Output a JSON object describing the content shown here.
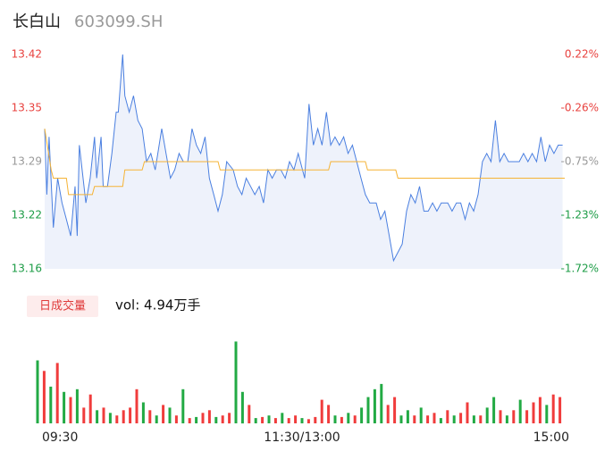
{
  "header": {
    "title": "长白山",
    "code": "603099.SH"
  },
  "chart_data": [
    {
      "type": "line",
      "xlim": [
        0,
        240
      ],
      "ylim": [
        13.16,
        13.42
      ],
      "yticks": [
        13.42,
        {
          "value": 13.355,
          "label": "13.35"
        },
        13.29,
        {
          "value": 13.225,
          "label": "13.22"
        },
        13.16
      ],
      "ytick_colors": [
        "#e8413e",
        "#e8413e",
        "#999999",
        "#1c9c46",
        "#1c9c46"
      ],
      "y2lim": [
        -1.72,
        0.22
      ],
      "y2ticks": [
        {
          "value": 0.22,
          "label": "0.22%"
        },
        {
          "value": -0.265,
          "label": "-0.26%"
        },
        {
          "value": -0.75,
          "label": "-0.75%"
        },
        {
          "value": -1.235,
          "label": "-1.23%"
        },
        {
          "value": -1.72,
          "label": "-1.72%"
        }
      ],
      "area_fill": true,
      "series": [
        {
          "color": "#4a7fe0",
          "x": [
            0,
            1,
            2,
            4,
            6,
            8,
            10,
            12,
            14,
            15,
            16,
            19,
            21,
            23,
            24,
            26,
            27,
            29,
            31,
            33,
            34,
            36,
            37,
            39,
            41,
            43,
            45,
            47,
            49,
            51,
            54,
            56,
            58,
            60,
            62,
            64,
            66,
            68,
            70,
            72,
            74,
            76,
            78,
            80,
            82,
            84,
            87,
            89,
            91,
            93,
            95,
            97,
            99,
            101,
            103,
            105,
            107,
            109,
            111,
            113,
            115,
            117,
            120,
            122,
            124,
            126,
            128,
            130,
            132,
            134,
            136,
            138,
            140,
            142,
            144,
            146,
            148,
            150,
            153,
            155,
            157,
            159,
            161,
            163,
            165,
            167,
            169,
            171,
            173,
            175,
            177,
            179,
            181,
            183,
            186,
            188,
            190,
            192,
            194,
            196,
            198,
            200,
            202,
            204,
            206,
            208,
            210,
            212,
            214,
            216,
            219,
            221,
            223,
            225,
            227,
            229,
            231,
            233,
            235,
            237,
            239
          ],
          "values": [
            13.33,
            13.25,
            13.32,
            13.21,
            13.27,
            13.24,
            13.22,
            13.2,
            13.26,
            13.2,
            13.31,
            13.24,
            13.27,
            13.32,
            13.27,
            13.32,
            13.26,
            13.26,
            13.3,
            13.35,
            13.35,
            13.42,
            13.37,
            13.35,
            13.37,
            13.34,
            13.33,
            13.29,
            13.3,
            13.28,
            13.33,
            13.3,
            13.27,
            13.28,
            13.3,
            13.29,
            13.29,
            13.33,
            13.31,
            13.3,
            13.32,
            13.27,
            13.25,
            13.23,
            13.25,
            13.29,
            13.28,
            13.26,
            13.25,
            13.27,
            13.26,
            13.25,
            13.26,
            13.24,
            13.28,
            13.27,
            13.28,
            13.28,
            13.27,
            13.29,
            13.28,
            13.3,
            13.27,
            13.36,
            13.31,
            13.33,
            13.31,
            13.35,
            13.31,
            13.32,
            13.31,
            13.32,
            13.3,
            13.31,
            13.29,
            13.27,
            13.25,
            13.24,
            13.24,
            13.22,
            13.23,
            13.2,
            13.17,
            13.18,
            13.19,
            13.23,
            13.25,
            13.24,
            13.26,
            13.23,
            13.23,
            13.24,
            13.23,
            13.24,
            13.24,
            13.23,
            13.24,
            13.24,
            13.22,
            13.24,
            13.23,
            13.25,
            13.29,
            13.3,
            13.29,
            13.34,
            13.29,
            13.3,
            13.29,
            13.29,
            13.29,
            13.3,
            13.29,
            13.3,
            13.29,
            13.32,
            13.29,
            13.31,
            13.3,
            13.31,
            13.31
          ]
        },
        {
          "color": "#f5b335",
          "x": [
            0,
            3,
            4,
            10,
            11,
            22,
            23,
            36,
            37,
            45,
            46,
            80,
            81,
            131,
            132,
            148,
            149,
            162,
            163,
            240
          ],
          "values": [
            13.33,
            13.28,
            13.27,
            13.27,
            13.25,
            13.25,
            13.26,
            13.26,
            13.28,
            13.28,
            13.29,
            13.29,
            13.28,
            13.28,
            13.29,
            13.29,
            13.28,
            13.28,
            13.27,
            13.27
          ]
        }
      ]
    },
    {
      "type": "bar",
      "legend_label": "日成交量",
      "volume_label": "vol: 4.94万手",
      "xlim": [
        0,
        240
      ],
      "ylim": [
        0,
        1600
      ],
      "xticks": [
        {
          "value": 0,
          "label": "09:30"
        },
        {
          "value": 120,
          "label": "11:30/13:00"
        },
        {
          "value": 240,
          "label": "15:00"
        }
      ],
      "x": [
        0,
        3,
        6,
        9,
        12,
        15,
        18,
        21,
        24,
        27,
        30,
        33,
        36,
        39,
        42,
        45,
        48,
        51,
        54,
        57,
        60,
        63,
        66,
        69,
        72,
        75,
        78,
        81,
        84,
        87,
        90,
        93,
        96,
        99,
        102,
        105,
        108,
        111,
        114,
        117,
        120,
        123,
        126,
        129,
        132,
        135,
        138,
        141,
        144,
        147,
        150,
        153,
        156,
        159,
        162,
        165,
        168,
        171,
        174,
        177,
        180,
        183,
        186,
        189,
        192,
        195,
        198,
        201,
        204,
        207,
        210,
        213,
        216,
        219,
        222,
        225,
        228,
        231,
        234,
        237
      ],
      "values": [
        1200,
        1000,
        700,
        1150,
        600,
        500,
        650,
        300,
        550,
        250,
        300,
        200,
        150,
        250,
        300,
        650,
        400,
        250,
        150,
        350,
        300,
        150,
        650,
        100,
        120,
        200,
        250,
        120,
        150,
        200,
        1560,
        600,
        350,
        100,
        120,
        150,
        100,
        200,
        100,
        150,
        100,
        80,
        120,
        450,
        350,
        150,
        120,
        200,
        150,
        300,
        500,
        650,
        750,
        350,
        500,
        150,
        250,
        150,
        300,
        150,
        200,
        100,
        250,
        150,
        200,
        400,
        150,
        150,
        300,
        500,
        250,
        150,
        250,
        450,
        250,
        400,
        500,
        350,
        550,
        500
      ],
      "colors": [
        "#22aa44",
        "#f03c3c",
        "#22aa44",
        "#f03c3c",
        "#22aa44",
        "#f03c3c",
        "#22aa44",
        "#f03c3c",
        "#f03c3c",
        "#22aa44",
        "#f03c3c",
        "#22aa44",
        "#f03c3c",
        "#f03c3c",
        "#f03c3c",
        "#f03c3c",
        "#22aa44",
        "#f03c3c",
        "#22aa44",
        "#f03c3c",
        "#22aa44",
        "#f03c3c",
        "#22aa44",
        "#f03c3c",
        "#22aa44",
        "#f03c3c",
        "#f03c3c",
        "#22aa44",
        "#f03c3c",
        "#f03c3c",
        "#22aa44",
        "#22aa44",
        "#f03c3c",
        "#22aa44",
        "#f03c3c",
        "#22aa44",
        "#f03c3c",
        "#22aa44",
        "#f03c3c",
        "#f03c3c",
        "#22aa44",
        "#f03c3c",
        "#f03c3c",
        "#f03c3c",
        "#f03c3c",
        "#22aa44",
        "#f03c3c",
        "#22aa44",
        "#f03c3c",
        "#22aa44",
        "#22aa44",
        "#22aa44",
        "#22aa44",
        "#f03c3c",
        "#f03c3c",
        "#22aa44",
        "#22aa44",
        "#f03c3c",
        "#22aa44",
        "#f03c3c",
        "#f03c3c",
        "#22aa44",
        "#f03c3c",
        "#22aa44",
        "#f03c3c",
        "#f03c3c",
        "#22aa44",
        "#f03c3c",
        "#22aa44",
        "#22aa44",
        "#f03c3c",
        "#22aa44",
        "#f03c3c",
        "#22aa44",
        "#f03c3c",
        "#f03c3c",
        "#f03c3c",
        "#22aa44",
        "#f03c3c",
        "#f03c3c"
      ]
    }
  ]
}
